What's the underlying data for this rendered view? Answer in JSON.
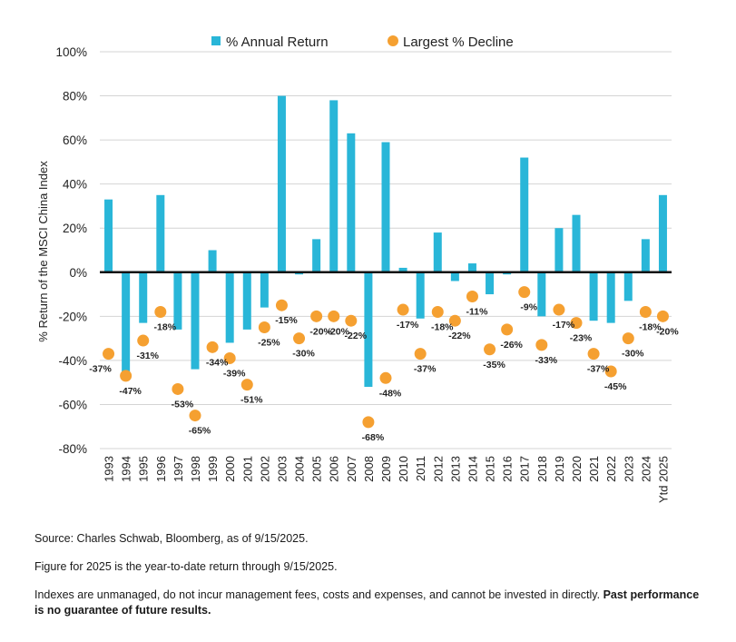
{
  "chart_data": {
    "type": "bar",
    "ylabel": "% Return of the MSCI China Index",
    "ylim": [
      -80,
      100
    ],
    "y_ticks": [
      100,
      80,
      60,
      40,
      20,
      0,
      -20,
      -40,
      -60,
      -80
    ],
    "y_tick_labels": [
      "100%",
      "80%",
      "60%",
      "40%",
      "20%",
      "0%",
      "-20%",
      "-40%",
      "-60%",
      "-80%"
    ],
    "legend_position": "top-center",
    "grid": true,
    "categories": [
      "1993",
      "1994",
      "1995",
      "1996",
      "1997",
      "1998",
      "1999",
      "2000",
      "2001",
      "2002",
      "2003",
      "2004",
      "2005",
      "2006",
      "2007",
      "2008",
      "2009",
      "2010",
      "2011",
      "2012",
      "2013",
      "2014",
      "2015",
      "2016",
      "2017",
      "2018",
      "2019",
      "2020",
      "2021",
      "2022",
      "2023",
      "2024",
      "Ytd 2025"
    ],
    "series": [
      {
        "name": "% Annual Return",
        "kind": "bar",
        "color": "#29B6D8",
        "values": [
          33,
          -46,
          -23,
          35,
          -26,
          -44,
          10,
          -32,
          -26,
          -16,
          80,
          -1,
          15,
          78,
          63,
          -52,
          59,
          2,
          -21,
          18,
          -4,
          4,
          -10,
          -1,
          52,
          -20,
          20,
          26,
          -22,
          -23,
          -13,
          15,
          35
        ]
      },
      {
        "name": "Largest % Decline",
        "kind": "dot",
        "color": "#F5A031",
        "values": [
          -37,
          -47,
          -31,
          -18,
          -53,
          -65,
          -34,
          -39,
          -51,
          -25,
          -15,
          -30,
          -20,
          -20,
          -22,
          -68,
          -48,
          -17,
          -37,
          -18,
          -22,
          -11,
          -35,
          -26,
          -9,
          -33,
          -17,
          -23,
          -37,
          -45,
          -30,
          -18,
          -20
        ],
        "labels": [
          "-37%",
          "-47%",
          "-31%",
          "-18%",
          "-53%",
          "-65%",
          "-34%",
          "-39%",
          "-51%",
          "-25%",
          "-15%",
          "-30%",
          "-20%",
          "-20%",
          "-22%",
          "-68%",
          "-48%",
          "-17%",
          "-37%",
          "-18%",
          "-22%",
          "-11%",
          "-35%",
          "-26%",
          "-9%",
          "-33%",
          "-17%",
          "-23%",
          "-37%",
          "-45%",
          "-30%",
          "-18%",
          "-20%"
        ]
      }
    ]
  },
  "notes": {
    "source": "Source: Charles Schwab, Bloomberg, as of 9/15/2025.",
    "ytd": "Figure for 2025 is the year-to-date return through 9/15/2025.",
    "disclaimer": "Indexes are unmanaged, do not incur management fees, costs and expenses, and cannot be invested in directly.",
    "disclaimer_bold": "Past performance is no guarantee of future results."
  }
}
